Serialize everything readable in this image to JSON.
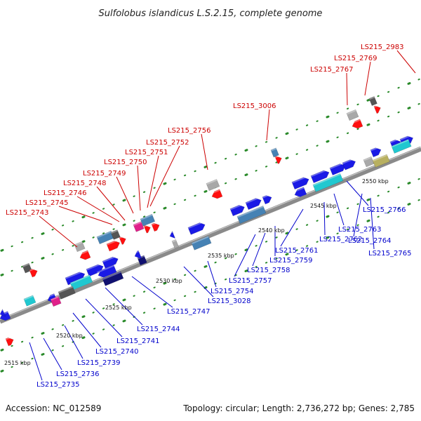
{
  "title": "Sulfolobus islandicus L.S.2.15, complete genome",
  "footer": {
    "accession": "Accession: NC_012589",
    "summary": "Topology: circular; Length: 2,736,272 bp; Genes: 2,785"
  },
  "ticks": [
    "2515 kbp",
    "2520 kbp",
    "2525 kbp",
    "2530 kbp",
    "2535 kbp",
    "2540 kbp",
    "2545 kbp",
    "2550 kbp"
  ],
  "top_labels": [
    "LS215_2743",
    "LS215_2745",
    "LS215_2746",
    "LS215_2748",
    "LS215_2749",
    "LS215_2750",
    "LS215_2751",
    "LS215_2752",
    "LS215_2756",
    "LS215_3006",
    "LS215_2767",
    "LS215_2769",
    "LS215_2983"
  ],
  "bottom_labels": [
    "LS215_2735",
    "LS215_2736",
    "LS215_2739",
    "LS215_2740",
    "LS215_2741",
    "LS215_2744",
    "LS215_2747",
    "LS215_3028",
    "LS215_2754",
    "LS215_2757",
    "LS215_2758",
    "LS215_2759",
    "LS215_2761",
    "LS215_2762",
    "LS215_2763",
    "LS215_2764",
    "LS215_2765",
    "LS215_2766"
  ],
  "colors": {
    "backbone": "#8a8a8a",
    "dot": "#2a8a2a",
    "red": "#ff1010",
    "blue": "#1a1ae6",
    "steel": "#4682b4",
    "cyan": "#20c8d0",
    "gray": "#a8a8a8",
    "navy": "#101070",
    "magenta": "#e0208a",
    "olive": "#b8b060",
    "darkgray": "#555555"
  }
}
